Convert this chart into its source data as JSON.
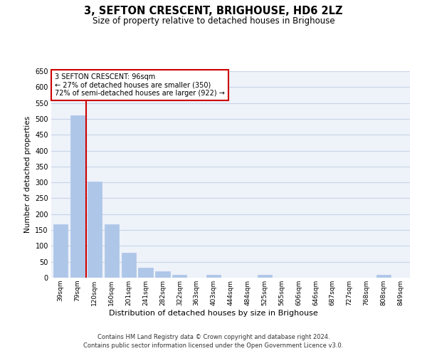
{
  "title": "3, SEFTON CRESCENT, BRIGHOUSE, HD6 2LZ",
  "subtitle": "Size of property relative to detached houses in Brighouse",
  "xlabel": "Distribution of detached houses by size in Brighouse",
  "ylabel": "Number of detached properties",
  "categories": [
    "39sqm",
    "79sqm",
    "120sqm",
    "160sqm",
    "201sqm",
    "241sqm",
    "282sqm",
    "322sqm",
    "363sqm",
    "403sqm",
    "444sqm",
    "484sqm",
    "525sqm",
    "565sqm",
    "606sqm",
    "646sqm",
    "687sqm",
    "727sqm",
    "768sqm",
    "808sqm",
    "849sqm"
  ],
  "values": [
    168,
    511,
    302,
    168,
    78,
    32,
    20,
    8,
    0,
    8,
    0,
    0,
    8,
    0,
    0,
    0,
    0,
    0,
    0,
    8,
    0
  ],
  "bar_color": "#aec6e8",
  "bar_edge_color": "#aec6e8",
  "grid_color": "#c8d4e8",
  "bg_color": "#eef2f9",
  "vline_color": "#cc0000",
  "vline_x": 1.5,
  "annotation_text": "3 SEFTON CRESCENT: 96sqm\n← 27% of detached houses are smaller (350)\n72% of semi-detached houses are larger (922) →",
  "annotation_box_facecolor": "#ffffff",
  "annotation_box_edgecolor": "#cc0000",
  "ylim": [
    0,
    650
  ],
  "yticks": [
    0,
    50,
    100,
    150,
    200,
    250,
    300,
    350,
    400,
    450,
    500,
    550,
    600,
    650
  ],
  "footer_line1": "Contains HM Land Registry data © Crown copyright and database right 2024.",
  "footer_line2": "Contains public sector information licensed under the Open Government Licence v3.0."
}
